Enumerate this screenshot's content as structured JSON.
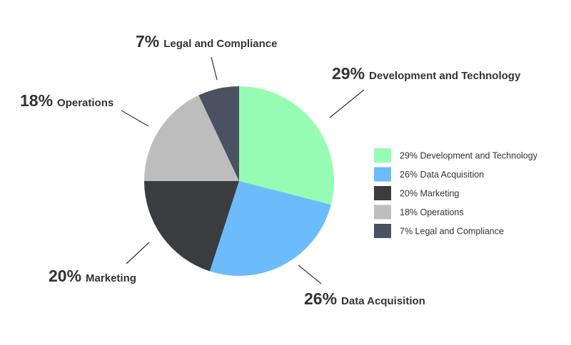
{
  "chart_data": {
    "type": "pie",
    "title": "",
    "categories": [
      "Development and Technology",
      "Data Acquisition",
      "Marketing",
      "Operations",
      "Legal and Compliance"
    ],
    "values": [
      29,
      26,
      20,
      18,
      7
    ],
    "value_labels": [
      "29%",
      "26%",
      "20%",
      "18%",
      "7%"
    ],
    "legend_labels": [
      "29% Development and Technology",
      "26% Data Acquisition",
      "20% Marketing",
      "18% Operations",
      "7% Legal and Compliance"
    ],
    "colors": [
      "#96fcb4",
      "#6cbbfb",
      "#3b3c3f",
      "#bdbdbd",
      "#4a5160"
    ],
    "legend_position": "right"
  }
}
